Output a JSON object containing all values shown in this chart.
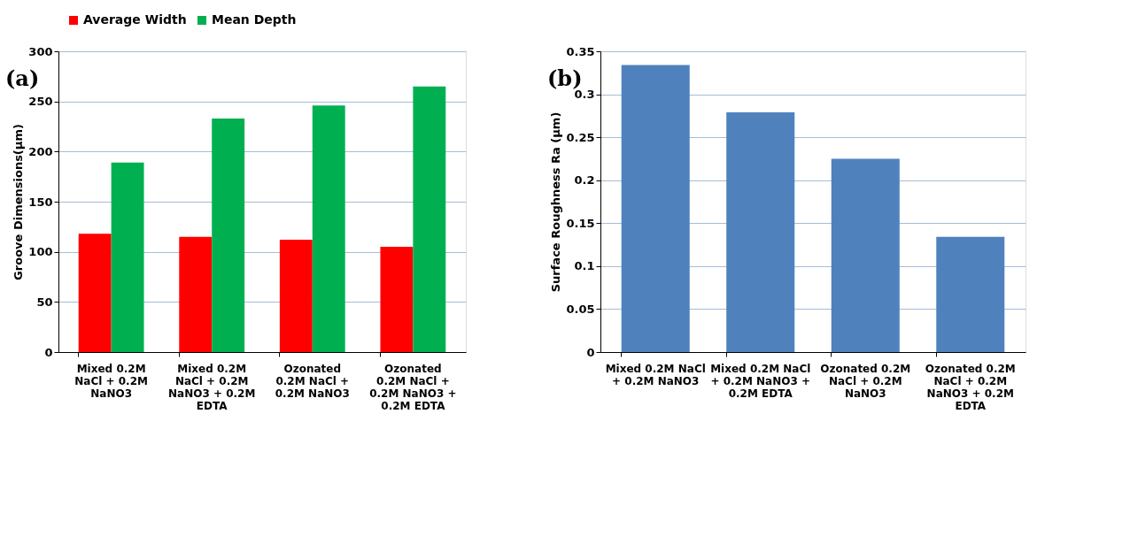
{
  "chart_data": [
    {
      "type": "bar",
      "ylabel": "Groove Dimensions(µm)",
      "annotations": [
        "(a)"
      ],
      "categories": [
        "Mixed 0.2M NaCl + 0.2M NaNO3",
        "Mixed 0.2M NaCl + 0.2M NaNO3 + 0.2M EDTA",
        "Ozonated 0.2M NaCl + 0.2M NaNO3",
        "Ozonated 0.2M NaCl + 0.2M NaNO3 + 0.2M EDTA"
      ],
      "series": [
        {
          "name": "Average Width",
          "color": "#ff0000",
          "values": [
            118,
            115,
            112,
            105
          ]
        },
        {
          "name": "Mean Depth",
          "color": "#00b050",
          "values": [
            189,
            233,
            246,
            265
          ]
        }
      ],
      "ylim": [
        0,
        300
      ],
      "yticks": [
        0,
        50,
        100,
        150,
        200,
        250,
        300
      ],
      "grid": "y",
      "legend": "top"
    },
    {
      "type": "bar",
      "ylabel": "Surface Roughness Ra (µm)",
      "annotations": [
        "(b)"
      ],
      "categories": [
        "Mixed 0.2M NaCl + 0.2M NaNO3",
        "Mixed 0.2M NaCl + 0.2M NaNO3 + 0.2M EDTA",
        "Ozonated 0.2M NaCl + 0.2M NaNO3",
        "Ozonated 0.2M NaCl + 0.2M NaNO3 + 0.2M EDTA"
      ],
      "series": [
        {
          "color": "#4f81bd",
          "values": [
            0.334,
            0.279,
            0.225,
            0.134
          ]
        }
      ],
      "ylim": [
        0,
        0.35
      ],
      "yticks": [
        0,
        0.05,
        0.1,
        0.15,
        0.2,
        0.25,
        0.3,
        0.35
      ],
      "grid": "y",
      "legend": false
    }
  ]
}
